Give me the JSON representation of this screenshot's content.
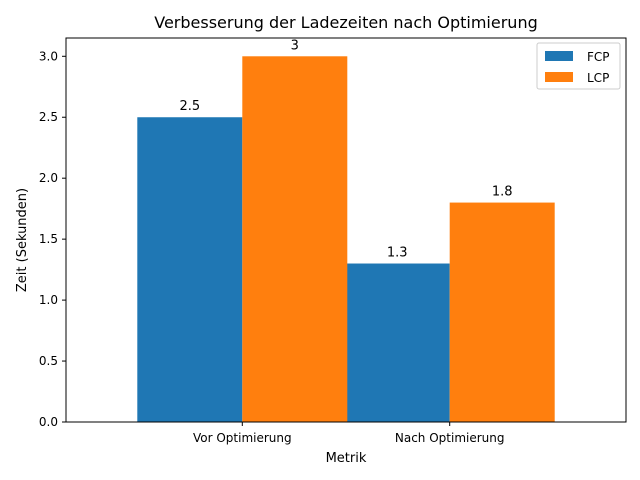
{
  "chart_data": {
    "type": "bar",
    "title": "Verbesserung der Ladezeiten nach Optimierung",
    "xlabel": "Metrik",
    "ylabel": "Zeit (Sekunden)",
    "categories": [
      "Vor Optimierung",
      "Nach Optimierung"
    ],
    "series": [
      {
        "name": "FCP",
        "values": [
          2.5,
          1.3
        ],
        "labels": [
          "2.5",
          "1.3"
        ],
        "color": "#1f77b4"
      },
      {
        "name": "LCP",
        "values": [
          3.0,
          1.8
        ],
        "labels": [
          "3",
          "1.8"
        ],
        "color": "#ff7f0e"
      }
    ],
    "ylim": [
      0,
      3.15
    ],
    "yticks": [
      0.0,
      0.5,
      1.0,
      1.5,
      2.0,
      2.5,
      3.0
    ],
    "ytick_labels": [
      "0.0",
      "0.5",
      "1.0",
      "1.5",
      "2.0",
      "2.5",
      "3.0"
    ],
    "grid": false,
    "legend_position": "top-right"
  }
}
